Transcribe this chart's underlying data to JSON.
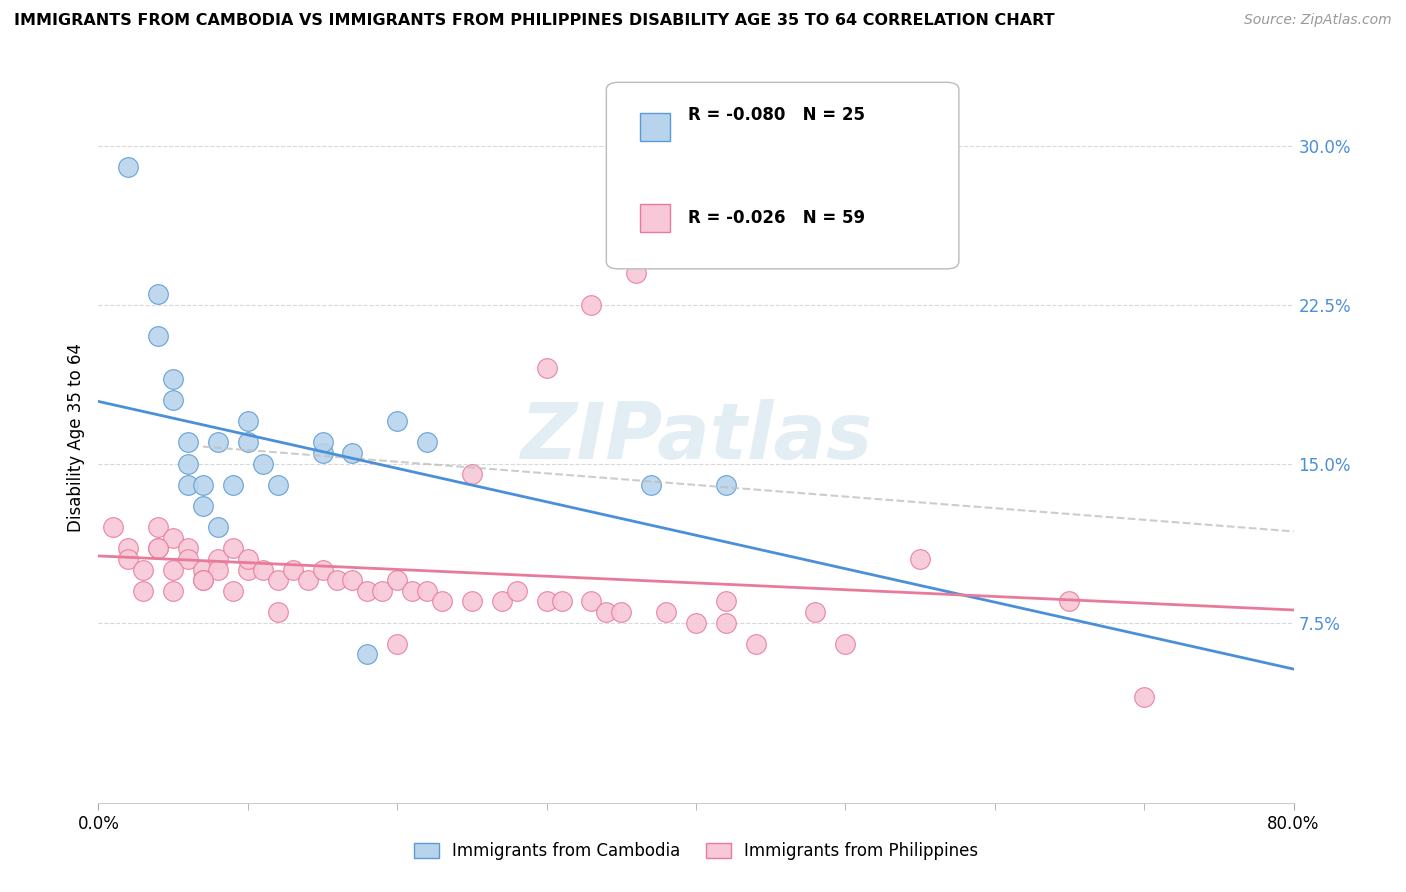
{
  "title": "IMMIGRANTS FROM CAMBODIA VS IMMIGRANTS FROM PHILIPPINES DISABILITY AGE 35 TO 64 CORRELATION CHART",
  "source": "Source: ZipAtlas.com",
  "ylabel": "Disability Age 35 to 64",
  "legend_label1": "Immigrants from Cambodia",
  "legend_label2": "Immigrants from Philippines",
  "legend_r1": "R = -0.080",
  "legend_n1": "N = 25",
  "legend_r2": "R = -0.026",
  "legend_n2": "N = 59",
  "yticks": [
    0.075,
    0.15,
    0.225,
    0.3
  ],
  "ytick_labels": [
    "7.5%",
    "15.0%",
    "22.5%",
    "30.0%"
  ],
  "xlim": [
    0.0,
    0.8
  ],
  "ylim": [
    -0.01,
    0.335
  ],
  "color_cambodia_fill": "#b8d4ec",
  "color_cambodia_edge": "#5b9bd5",
  "color_philippines_fill": "#f8c8d8",
  "color_philippines_edge": "#e87a9a",
  "color_trend_cambodia": "#4a90d9",
  "color_trend_philippines": "#e87a9a",
  "color_trend_dashed": "#c0c0c0",
  "watermark": "ZIPatlas",
  "background": "#ffffff",
  "grid_color": "#d8d8d8",
  "cambodia_x": [
    0.02,
    0.04,
    0.04,
    0.05,
    0.05,
    0.06,
    0.06,
    0.06,
    0.07,
    0.07,
    0.08,
    0.08,
    0.09,
    0.1,
    0.1,
    0.11,
    0.12,
    0.15,
    0.15,
    0.17,
    0.18,
    0.2,
    0.22,
    0.37,
    0.42
  ],
  "cambodia_y": [
    0.29,
    0.21,
    0.23,
    0.18,
    0.19,
    0.14,
    0.15,
    0.16,
    0.13,
    0.14,
    0.12,
    0.16,
    0.14,
    0.16,
    0.17,
    0.15,
    0.14,
    0.155,
    0.16,
    0.155,
    0.06,
    0.17,
    0.16,
    0.14,
    0.14
  ],
  "philippines_x": [
    0.01,
    0.02,
    0.02,
    0.03,
    0.03,
    0.04,
    0.04,
    0.05,
    0.05,
    0.06,
    0.06,
    0.07,
    0.07,
    0.08,
    0.08,
    0.09,
    0.1,
    0.1,
    0.11,
    0.12,
    0.13,
    0.14,
    0.15,
    0.16,
    0.17,
    0.18,
    0.19,
    0.2,
    0.21,
    0.22,
    0.23,
    0.25,
    0.27,
    0.28,
    0.3,
    0.31,
    0.33,
    0.34,
    0.35,
    0.38,
    0.4,
    0.42,
    0.44,
    0.48,
    0.5,
    0.33,
    0.36,
    0.3,
    0.25,
    0.2,
    0.55,
    0.42,
    0.65,
    0.7,
    0.04,
    0.05,
    0.07,
    0.09,
    0.12
  ],
  "philippines_y": [
    0.12,
    0.11,
    0.105,
    0.1,
    0.09,
    0.12,
    0.11,
    0.115,
    0.09,
    0.11,
    0.105,
    0.1,
    0.095,
    0.105,
    0.1,
    0.11,
    0.1,
    0.105,
    0.1,
    0.095,
    0.1,
    0.095,
    0.1,
    0.095,
    0.095,
    0.09,
    0.09,
    0.095,
    0.09,
    0.09,
    0.085,
    0.085,
    0.085,
    0.09,
    0.085,
    0.085,
    0.085,
    0.08,
    0.08,
    0.08,
    0.075,
    0.075,
    0.065,
    0.08,
    0.065,
    0.225,
    0.24,
    0.195,
    0.145,
    0.065,
    0.105,
    0.085,
    0.085,
    0.04,
    0.11,
    0.1,
    0.095,
    0.09,
    0.08
  ]
}
